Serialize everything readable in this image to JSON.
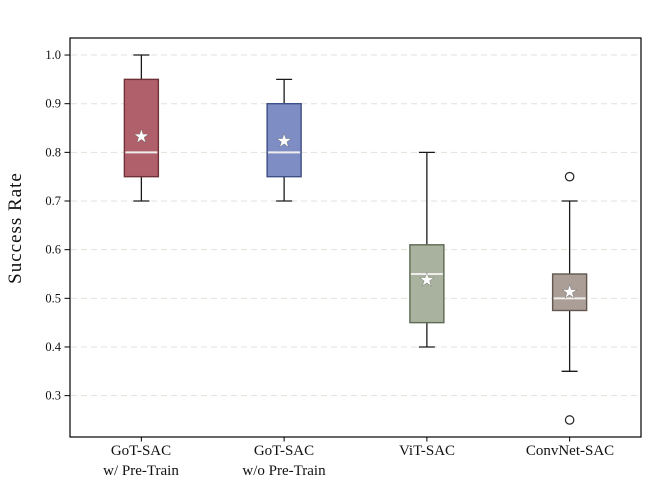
{
  "chart_data": {
    "type": "boxplot",
    "title": "",
    "xlabel": "",
    "ylabel": "Success Rate",
    "categories": [
      "GoT-SAC\nw/ Pre-Train",
      "GoT-SAC\nw/o Pre-Train",
      "ViT-SAC",
      "ConvNet-SAC"
    ],
    "yticks": [
      1.0,
      0.9,
      0.8,
      0.7,
      0.6,
      0.5,
      0.4,
      0.3
    ],
    "ylim": [
      0.215,
      1.035
    ],
    "grid": "horizontal-dashed",
    "legend_position": "none",
    "series": [
      {
        "name": "GoT-SAC w/ Pre-Train",
        "whisker_low": 0.7,
        "q1": 0.75,
        "median": 0.8,
        "q3": 0.95,
        "whisker_high": 1.0,
        "mean": 0.835,
        "outliers": [],
        "fill": "#b0606a",
        "edge": "#703038"
      },
      {
        "name": "GoT-SAC w/o Pre-Train",
        "whisker_low": 0.7,
        "q1": 0.75,
        "median": 0.8,
        "q3": 0.9,
        "whisker_high": 0.95,
        "mean": 0.825,
        "outliers": [],
        "fill": "#7e8ec5",
        "edge": "#3e4e86"
      },
      {
        "name": "ViT-SAC",
        "whisker_low": 0.4,
        "q1": 0.45,
        "median": 0.55,
        "q3": 0.61,
        "whisker_high": 0.8,
        "mean": 0.54,
        "outliers": [],
        "fill": "#a8b29e",
        "edge": "#5e6b54"
      },
      {
        "name": "ConvNet-SAC",
        "whisker_low": 0.35,
        "q1": 0.475,
        "median": 0.5,
        "q3": 0.55,
        "whisker_high": 0.7,
        "mean": 0.515,
        "outliers": [
          0.75,
          0.25
        ],
        "fill": "#aa9e96",
        "edge": "#635850"
      }
    ],
    "style": {
      "grid_color": "#e4e1da",
      "spine_color": "#000000",
      "whisker_color": "#1a1a1a",
      "median_color": "#f0eeec",
      "mean_marker": "star",
      "mean_fill": "#ffffff",
      "mean_edge": "#666666",
      "outlier_fill": "#ffffff",
      "outlier_edge": "#222222",
      "tick_label_color": "#111111"
    }
  }
}
